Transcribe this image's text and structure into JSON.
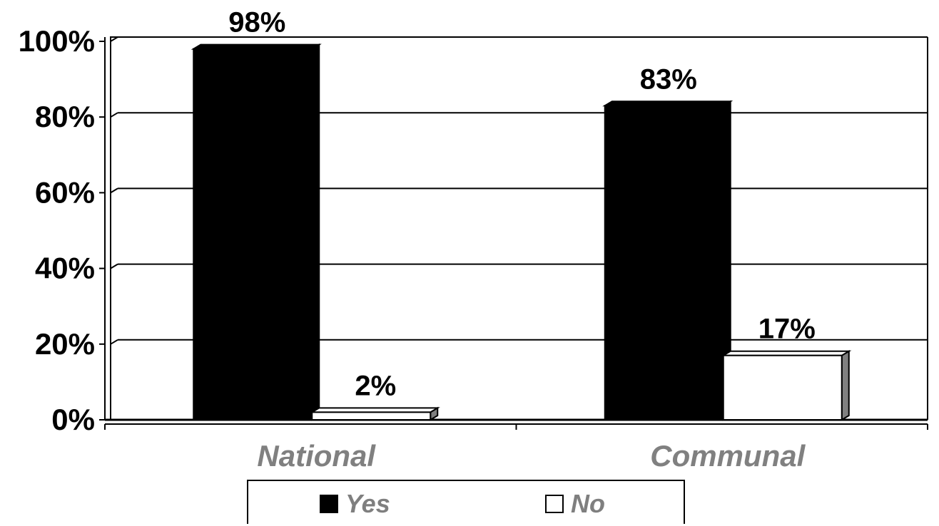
{
  "chart_data": {
    "type": "bar",
    "categories": [
      "National",
      "Communal"
    ],
    "series": [
      {
        "name": "Yes",
        "values": [
          98,
          83
        ],
        "labels": [
          "98%",
          "83%"
        ],
        "color": "#000000"
      },
      {
        "name": "No",
        "values": [
          2,
          17
        ],
        "labels": [
          "2%",
          "17%"
        ],
        "color": "#ffffff"
      }
    ],
    "y_ticks": [
      "0%",
      "20%",
      "40%",
      "60%",
      "80%",
      "100%"
    ],
    "ylim": [
      0,
      100
    ],
    "grid": true,
    "legend_position": "bottom"
  },
  "colors": {
    "axis_text": "#000000",
    "category_text": "#808080",
    "bar_side_no": "#808080"
  }
}
